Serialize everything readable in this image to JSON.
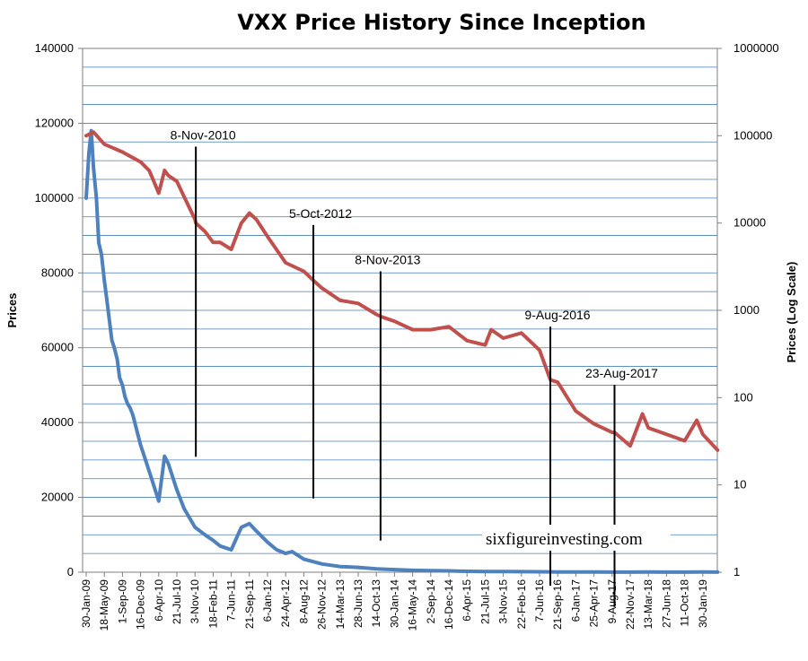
{
  "chart_data": {
    "type": "line",
    "title": "VXX Price History Since Inception",
    "ylabel": "Prices",
    "y2label": "Prices (Log Scale)",
    "ylim": [
      0,
      140000
    ],
    "y_ticks": [
      "0",
      "20000",
      "40000",
      "60000",
      "80000",
      "100000",
      "120000",
      "140000"
    ],
    "y2lim": [
      1,
      1000000
    ],
    "y2_scale": "log",
    "y2_ticks": [
      "1",
      "10",
      "100",
      "1000",
      "10000",
      "100000",
      "1000000"
    ],
    "grid": "horizontal",
    "x_ticks": [
      "30-Jan-09",
      "18-May-09",
      "1-Sep-09",
      "16-Dec-09",
      "6-Apr-10",
      "21-Jul-10",
      "3-Nov-10",
      "18-Feb-11",
      "7-Jun-11",
      "21-Sep-11",
      "6-Jan-12",
      "24-Apr-12",
      "8-Aug-12",
      "26-Nov-12",
      "14-Mar-13",
      "28-Jun-13",
      "14-Oct-13",
      "30-Jan-14",
      "16-May-14",
      "2-Sep-14",
      "16-Dec-14",
      "6-Apr-15",
      "21-Jul-15",
      "3-Nov-15",
      "22-Feb-16",
      "7-Jun-16",
      "21-Sep-16",
      "6-Jan-17",
      "25-Apr-17",
      "9-Aug-17",
      "22-Nov-17",
      "13-Mar-18",
      "27-Jun-18",
      "11-Oct-18",
      "30-Jan-19"
    ],
    "series": [
      {
        "axis": "left",
        "color": "#4f81bd",
        "points": [
          [
            "30-Jan-09",
            100000
          ],
          [
            "15-Feb-09",
            112000
          ],
          [
            "1-Mar-09",
            118000
          ],
          [
            "15-Mar-09",
            108000
          ],
          [
            "1-Apr-09",
            100000
          ],
          [
            "15-Apr-09",
            88000
          ],
          [
            "1-May-09",
            85000
          ],
          [
            "18-May-09",
            78000
          ],
          [
            "1-Jun-09",
            73000
          ],
          [
            "15-Jun-09",
            68000
          ],
          [
            "1-Jul-09",
            62000
          ],
          [
            "15-Jul-09",
            60000
          ],
          [
            "1-Aug-09",
            57000
          ],
          [
            "15-Aug-09",
            52000
          ],
          [
            "1-Sep-09",
            50000
          ],
          [
            "15-Sep-09",
            47000
          ],
          [
            "1-Oct-09",
            45000
          ],
          [
            "15-Oct-09",
            44000
          ],
          [
            "1-Nov-09",
            42000
          ],
          [
            "16-Dec-09",
            34000
          ],
          [
            "15-Jan-10",
            30000
          ],
          [
            "1-Mar-10",
            24000
          ],
          [
            "6-Apr-10",
            19000
          ],
          [
            "10-May-10",
            31000
          ],
          [
            "1-Jun-10",
            29000
          ],
          [
            "21-Jul-10",
            22000
          ],
          [
            "1-Sep-10",
            17000
          ],
          [
            "3-Nov-10",
            12000
          ],
          [
            "1-Jan-11",
            10000
          ],
          [
            "18-Feb-11",
            8500
          ],
          [
            "1-Apr-11",
            7000
          ],
          [
            "7-Jun-11",
            6000
          ],
          [
            "5-Aug-11",
            12000
          ],
          [
            "21-Sep-11",
            13000
          ],
          [
            "1-Nov-11",
            11000
          ],
          [
            "6-Jan-12",
            8000
          ],
          [
            "1-Mar-12",
            6000
          ],
          [
            "24-Apr-12",
            5000
          ],
          [
            "1-Jun-12",
            5500
          ],
          [
            "8-Aug-12",
            3500
          ],
          [
            "26-Nov-12",
            2200
          ],
          [
            "14-Mar-13",
            1500
          ],
          [
            "28-Jun-13",
            1300
          ],
          [
            "14-Oct-13",
            900
          ],
          [
            "30-Jan-14",
            700
          ],
          [
            "16-May-14",
            500
          ],
          [
            "2-Sep-14",
            400
          ],
          [
            "16-Dec-14",
            350
          ],
          [
            "6-Apr-15",
            250
          ],
          [
            "21-Jul-15",
            200
          ],
          [
            "3-Nov-15",
            180
          ],
          [
            "22-Feb-16",
            150
          ],
          [
            "7-Jun-16",
            110
          ],
          [
            "21-Sep-16",
            80
          ],
          [
            "6-Jan-17",
            50
          ],
          [
            "25-Apr-17",
            40
          ],
          [
            "9-Aug-17",
            35
          ],
          [
            "22-Nov-17",
            30
          ],
          [
            "13-Mar-18",
            40
          ],
          [
            "27-Jun-18",
            35
          ],
          [
            "11-Oct-18",
            32
          ],
          [
            "30-Jan-19",
            36
          ],
          [
            "28-Apr-19",
            28
          ]
        ]
      },
      {
        "axis": "right",
        "color": "#c0504d",
        "points": [
          [
            "30-Jan-09",
            100000
          ],
          [
            "15-Mar-09",
            110000
          ],
          [
            "18-May-09",
            80000
          ],
          [
            "1-Sep-09",
            65000
          ],
          [
            "16-Dec-09",
            50000
          ],
          [
            "6-Feb-10",
            40000
          ],
          [
            "1-Mar-10",
            32000
          ],
          [
            "6-Apr-10",
            22000
          ],
          [
            "10-May-10",
            40000
          ],
          [
            "1-Jun-10",
            35000
          ],
          [
            "21-Jul-10",
            30000
          ],
          [
            "1-Sep-10",
            20000
          ],
          [
            "3-Nov-10",
            11000
          ],
          [
            "8-Nov-10",
            10000
          ],
          [
            "1-Jan-11",
            8000
          ],
          [
            "18-Feb-11",
            6000
          ],
          [
            "1-Apr-11",
            6000
          ],
          [
            "7-Jun-11",
            5000
          ],
          [
            "5-Aug-11",
            10000
          ],
          [
            "21-Sep-11",
            13000
          ],
          [
            "1-Nov-11",
            11000
          ],
          [
            "6-Jan-12",
            7000
          ],
          [
            "24-Apr-12",
            3500
          ],
          [
            "8-Aug-12",
            2800
          ],
          [
            "5-Oct-12",
            2200
          ],
          [
            "26-Nov-12",
            1800
          ],
          [
            "14-Mar-13",
            1300
          ],
          [
            "28-Jun-13",
            1200
          ],
          [
            "14-Oct-13",
            900
          ],
          [
            "8-Nov-13",
            850
          ],
          [
            "30-Jan-14",
            750
          ],
          [
            "16-May-14",
            600
          ],
          [
            "2-Sep-14",
            600
          ],
          [
            "16-Dec-14",
            650
          ],
          [
            "6-Apr-15",
            450
          ],
          [
            "21-Jul-15",
            400
          ],
          [
            "25-Aug-15",
            600
          ],
          [
            "3-Nov-15",
            480
          ],
          [
            "22-Feb-16",
            550
          ],
          [
            "7-Jun-16",
            350
          ],
          [
            "9-Aug-16",
            160
          ],
          [
            "21-Sep-16",
            150
          ],
          [
            "6-Jan-17",
            70
          ],
          [
            "25-Apr-17",
            50
          ],
          [
            "9-Aug-17",
            40
          ],
          [
            "23-Aug-17",
            40
          ],
          [
            "22-Nov-17",
            28
          ],
          [
            "5-Feb-18",
            65
          ],
          [
            "13-Mar-18",
            45
          ],
          [
            "27-Jun-18",
            38
          ],
          [
            "11-Oct-18",
            32
          ],
          [
            "24-Dec-18",
            55
          ],
          [
            "30-Jan-19",
            38
          ],
          [
            "28-Apr-19",
            25
          ]
        ]
      }
    ],
    "annotations": [
      {
        "label": "8-Nov-2010",
        "date": "8-Nov-2010",
        "line_top": 75000,
        "line_bottom": 21
      },
      {
        "label": "5-Oct-2012",
        "date": "5-Oct-2012",
        "line_top": 9500,
        "line_bottom": 7
      },
      {
        "label": "8-Nov-2013",
        "date": "8-Nov-2013",
        "line_top": 2800,
        "line_bottom": 2.3
      },
      {
        "label": "9-Aug-2016",
        "date": "9-Aug-2016",
        "line_top": 650,
        "line_bottom": 0.7
      },
      {
        "label": "23-Aug-2017",
        "date": "23-Aug-2017",
        "line_top": 140,
        "line_bottom": 0.4
      }
    ],
    "watermark": "sixfigureinvesting.com"
  }
}
